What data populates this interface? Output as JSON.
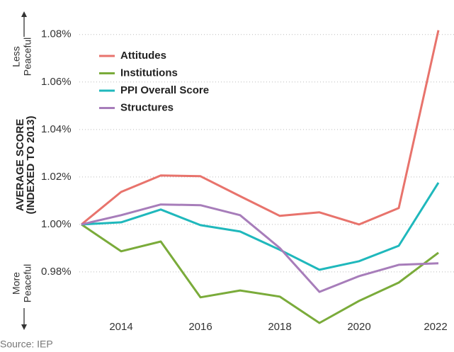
{
  "chart_data": {
    "type": "line",
    "y_label": [
      "AVERAGE SCORE",
      "(INDEXED TO 2013)"
    ],
    "annotations": {
      "top": [
        "Less",
        "Peaceful"
      ],
      "bottom": [
        "More",
        "Peaceful"
      ]
    },
    "source": "Source: IEP",
    "x": [
      2013,
      2014,
      2015,
      2016,
      2017,
      2018,
      2019,
      2020,
      2021,
      2022
    ],
    "xlim": [
      2013,
      2022
    ],
    "xticks": [
      2014,
      2016,
      2018,
      2020,
      2022
    ],
    "ylim": [
      0.957,
      1.085
    ],
    "yticks": [
      {
        "value": 0.98,
        "label": "0.98%"
      },
      {
        "value": 1.0,
        "label": "1.00%"
      },
      {
        "value": 1.02,
        "label": "1.02%"
      },
      {
        "value": 1.04,
        "label": "1.04%"
      },
      {
        "value": 1.06,
        "label": "1.06%"
      },
      {
        "value": 1.08,
        "label": "1.08%"
      }
    ],
    "grid": true,
    "legend": "upper left",
    "series": [
      {
        "name": "Attitudes",
        "color": "#e8736c",
        "values": [
          1.0,
          1.0137,
          1.0206,
          1.0203,
          1.0119,
          1.0036,
          1.0051,
          1.0,
          1.0069,
          1.0818
        ]
      },
      {
        "name": "Institutions",
        "color": "#7aab3a",
        "values": [
          1.0,
          0.9887,
          0.9928,
          0.9693,
          0.9722,
          0.9696,
          0.9585,
          0.9678,
          0.9755,
          0.9881
        ]
      },
      {
        "name": "PPI Overall Score",
        "color": "#1fb8bc",
        "values": [
          1.0,
          1.0009,
          1.0063,
          0.9997,
          0.997,
          0.9893,
          0.9809,
          0.9845,
          0.991,
          1.0176
        ]
      },
      {
        "name": "Structures",
        "color": "#a77dba",
        "values": [
          1.0,
          1.0039,
          1.0084,
          1.0081,
          1.0039,
          0.9901,
          0.9716,
          0.9782,
          0.983,
          0.9836
        ]
      }
    ]
  }
}
